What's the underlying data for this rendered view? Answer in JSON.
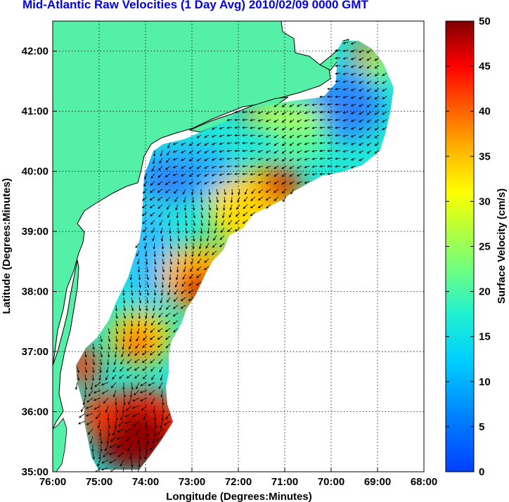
{
  "title": "Mid-Atlantic Raw Velocities (1 Day Avg) 2010/02/09 0000 GMT",
  "map": {
    "xlabel": "Longitude (Degrees:Minutes)",
    "ylabel": "Latitude (Degrees:Minutes)",
    "x_ticks": [
      "76:00",
      "75:00",
      "74:00",
      "73:00",
      "72:00",
      "71:00",
      "70:00",
      "69:00",
      "68:00"
    ],
    "y_ticks": [
      "42:00",
      "41:00",
      "40:00",
      "39:00",
      "38:00",
      "37:00",
      "36:00",
      "35:00"
    ],
    "x_range": [
      -76,
      -68
    ],
    "y_range": [
      35,
      42.5
    ],
    "grid": "dotted",
    "land_color": "#55f0a8",
    "ocean_color": "#ffffff"
  },
  "colorbar": {
    "label": "Surface Velocity (cm/s)",
    "ticks": [
      "0",
      "5",
      "10",
      "15",
      "20",
      "25",
      "30",
      "35",
      "40",
      "45",
      "50"
    ],
    "range": [
      0,
      50
    ],
    "colormap": "jet"
  },
  "chart_data": {
    "type": "heatmap",
    "title": "Mid-Atlantic Raw Velocities (1 Day Avg) 2010/02/09 0000 GMT",
    "xlabel": "Longitude (Degrees:Minutes)",
    "ylabel": "Latitude (Degrees:Minutes)",
    "xlim": [
      -76,
      -68
    ],
    "ylim": [
      35,
      42.5
    ],
    "zlabel": "Surface Velocity (cm/s)",
    "zlim": [
      0,
      50
    ],
    "features": [
      {
        "lon": -70.9,
        "lat": 40.3,
        "value": 50
      },
      {
        "lon": -73.6,
        "lat": 38.1,
        "value": 48
      },
      {
        "lon": -74.2,
        "lat": 35.4,
        "value": 50
      },
      {
        "lon": -73.9,
        "lat": 37.2,
        "value": 40
      },
      {
        "lon": -75.2,
        "lat": 37.0,
        "value": 38
      },
      {
        "lon": -74.6,
        "lat": 40.3,
        "value": 5
      },
      {
        "lon": -70.0,
        "lat": 41.1,
        "value": 5
      },
      {
        "lon": -72.6,
        "lat": 39.3,
        "value": 28
      },
      {
        "lon": -72.0,
        "lat": 40.3,
        "value": 15
      }
    ]
  }
}
